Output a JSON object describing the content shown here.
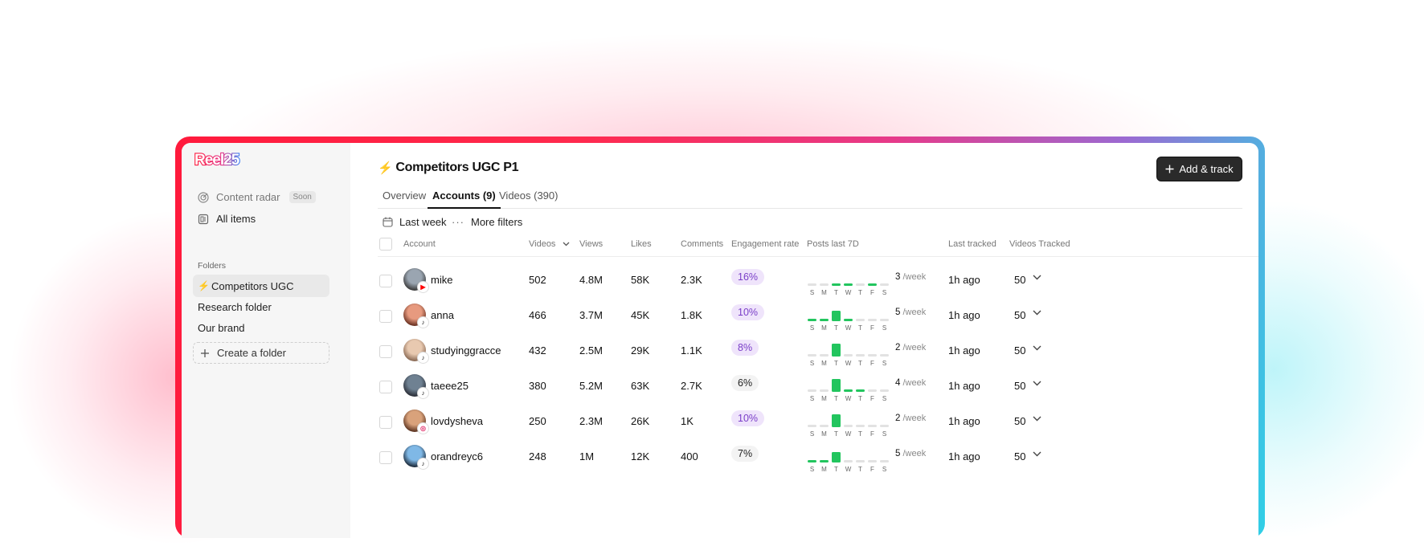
{
  "app": {
    "logo_text": "Reel25"
  },
  "colors": {
    "accent": "#ff1a3c",
    "gradient_end": "#2fd0e6",
    "bar_active": "#22c55e",
    "bar_idle": "#e2e2e2",
    "pill_hi_bg": "#efe4fb",
    "pill_hi_text": "#7a3ec8"
  },
  "sidebar": {
    "nav": [
      {
        "label": "Content radar",
        "badge": "Soon",
        "icon": "radar-icon"
      },
      {
        "label": "All items",
        "icon": "items-icon"
      }
    ],
    "folders_label": "Folders",
    "folders": [
      {
        "label": "Competitors UGC",
        "icon": "bolt-icon",
        "active": true
      },
      {
        "label": "Research folder"
      },
      {
        "label": "Our brand"
      }
    ],
    "create_folder": "Create a folder"
  },
  "header": {
    "title": "Competitors UGC P1",
    "add_button": "Add & track"
  },
  "tabs": [
    "Overview",
    "Accounts (9)",
    "Videos (390)"
  ],
  "active_tab": 1,
  "filters": {
    "date": "Last week",
    "more": "More filters"
  },
  "table": {
    "columns": [
      "Account",
      "Videos",
      "Views",
      "Likes",
      "Comments",
      "Engagement rate",
      "Posts last 7D",
      "Last tracked",
      "Videos Tracked"
    ],
    "day_labels": [
      "S",
      "M",
      "T",
      "W",
      "T",
      "F",
      "S"
    ],
    "per_week_suffix": "/week",
    "rows": [
      {
        "account": "mike",
        "platform": "youtube-shorts",
        "videos": "502",
        "views": "4.8M",
        "likes": "58K",
        "comments": "2.3K",
        "engagement": "16%",
        "highlight": true,
        "posts": [
          0,
          0,
          1,
          1,
          0,
          1,
          0
        ],
        "posts_per_week": "3",
        "last_tracked": "1h ago",
        "videos_tracked": "50"
      },
      {
        "account": "anna",
        "platform": "tiktok",
        "videos": "466",
        "views": "3.7M",
        "likes": "45K",
        "comments": "1.8K",
        "engagement": "10%",
        "highlight": true,
        "posts": [
          1,
          1,
          3,
          1,
          0,
          0,
          0
        ],
        "posts_per_week": "5",
        "last_tracked": "1h ago",
        "videos_tracked": "50"
      },
      {
        "account": "studyinggracce",
        "platform": "tiktok",
        "videos": "432",
        "views": "2.5M",
        "likes": "29K",
        "comments": "1.1K",
        "engagement": "8%",
        "highlight": true,
        "posts": [
          0,
          0,
          2,
          0,
          0,
          0,
          0
        ],
        "posts_per_week": "2",
        "last_tracked": "1h ago",
        "videos_tracked": "50"
      },
      {
        "account": "taeee25",
        "platform": "tiktok",
        "videos": "380",
        "views": "5.2M",
        "likes": "63K",
        "comments": "2.7K",
        "engagement": "6%",
        "highlight": false,
        "posts": [
          0,
          0,
          2,
          1,
          1,
          0,
          0
        ],
        "posts_per_week": "4",
        "last_tracked": "1h ago",
        "videos_tracked": "50"
      },
      {
        "account": "lovdysheva",
        "platform": "instagram",
        "videos": "250",
        "views": "2.3M",
        "likes": "26K",
        "comments": "1K",
        "engagement": "10%",
        "highlight": true,
        "posts": [
          0,
          0,
          2,
          0,
          0,
          0,
          0
        ],
        "posts_per_week": "2",
        "last_tracked": "1h ago",
        "videos_tracked": "50"
      },
      {
        "account": "orandreyc6",
        "platform": "tiktok",
        "videos": "248",
        "views": "1M",
        "likes": "12K",
        "comments": "400",
        "engagement": "7%",
        "highlight": false,
        "posts": [
          1,
          1,
          3,
          0,
          0,
          0,
          0
        ],
        "posts_per_week": "5",
        "last_tracked": "1h ago",
        "videos_tracked": "50"
      }
    ]
  }
}
